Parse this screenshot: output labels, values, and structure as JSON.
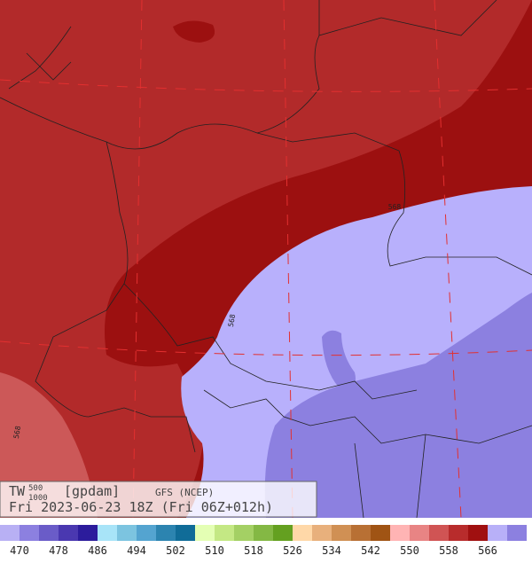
{
  "header": {
    "field": "TW",
    "sup": "500",
    "sub": "1000",
    "unit": "[gpdam]",
    "model": "GFS (NCEP)",
    "time": "Fri 2023-06-23 18Z (Fri 06Z+012h)"
  },
  "map": {
    "contour_labels": [
      "568",
      "568",
      "568"
    ]
  },
  "legend": {
    "colors": [
      "#b8b0f4",
      "#8c80e0",
      "#6a5cc8",
      "#4a38b0",
      "#2c1c9c",
      "#a8e4f8",
      "#7cc4e0",
      "#54a4d0",
      "#2c84b0",
      "#106c98",
      "#e4ffb4",
      "#c4e884",
      "#a4d064",
      "#84b844",
      "#64a020",
      "#ffd8a8",
      "#e8b07c",
      "#d09054",
      "#b87034",
      "#a05414",
      "#ffb4b4",
      "#e88484",
      "#d05454",
      "#b82c2c",
      "#a01010",
      "#b8b0f8",
      "#8c80e0"
    ],
    "labels": [
      470,
      478,
      486,
      494,
      502,
      510,
      518,
      526,
      534,
      542,
      550,
      558,
      566
    ]
  }
}
